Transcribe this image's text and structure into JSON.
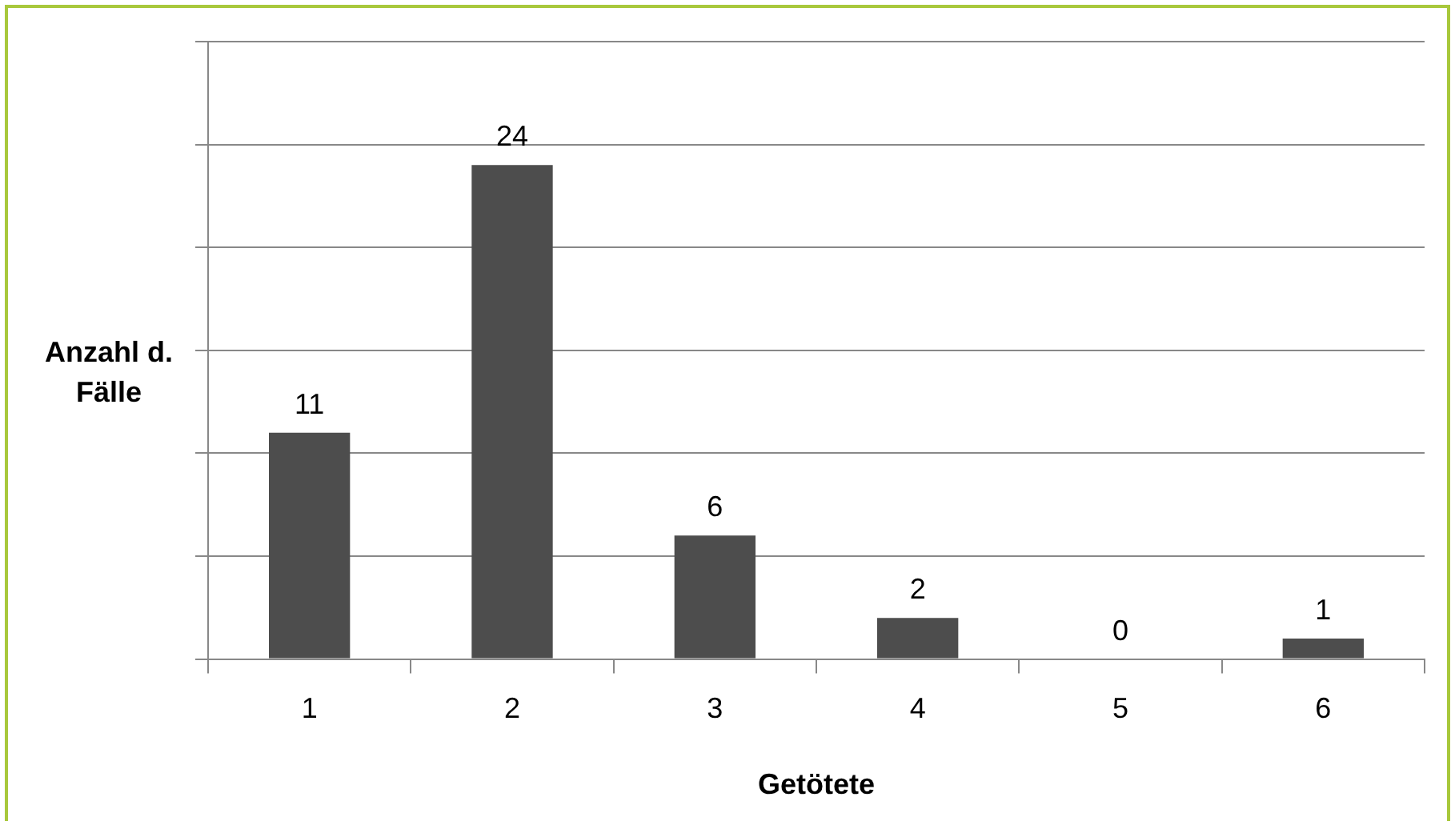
{
  "chart_data": {
    "type": "bar",
    "xlabel": "Getötete",
    "ylabel": "Anzahl d. Fälle",
    "categories": [
      "1",
      "2",
      "3",
      "4",
      "5",
      "6"
    ],
    "values": [
      11,
      24,
      6,
      2,
      0,
      1
    ],
    "color": "#4d4d4d",
    "ylim": [
      0,
      30
    ],
    "yticks": [
      {
        "value": 0,
        "label": null
      },
      {
        "value": 5,
        "label": null
      },
      {
        "value": 10,
        "label": null
      },
      {
        "value": 15,
        "label": null
      },
      {
        "value": 20,
        "label": null
      },
      {
        "value": 25,
        "label": null
      },
      {
        "value": 30,
        "label": null
      }
    ],
    "grid": "y",
    "tick_labels": "x",
    "data_labels": true,
    "legend": false
  }
}
